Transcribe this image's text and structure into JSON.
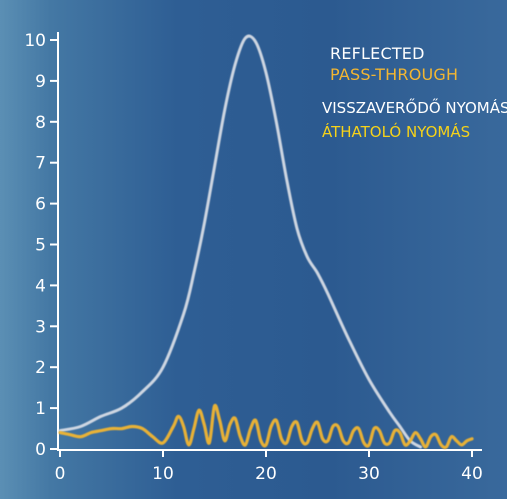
{
  "colors": {
    "background": "#2e5e94",
    "axis": "#ffffff",
    "reflected": "#d7dde6",
    "pass_through": "#f2b632",
    "legend_hu_reflected": "#ffffff",
    "legend_hu_pass": "#f5d21a"
  },
  "legend": {
    "reflected_en": "REFLECTED",
    "pass_en": "PASS-THROUGH",
    "reflected_hu": "VISSZAVERŐDŐ NYOMÁS",
    "pass_hu": "ÁTHATOLÓ NYOMÁS"
  },
  "chart_data": {
    "type": "line",
    "title": "",
    "xlabel": "",
    "ylabel": "",
    "xlim": [
      0,
      40
    ],
    "ylim": [
      0,
      10
    ],
    "x_ticks": [
      "0",
      "10",
      "20",
      "30",
      "40"
    ],
    "y_ticks": [
      "0",
      "1",
      "2",
      "3",
      "4",
      "5",
      "6",
      "7",
      "8",
      "9",
      "10"
    ],
    "grid": false,
    "legend_position": "top-right",
    "series": [
      {
        "name": "REFLECTED",
        "x": [
          0,
          2,
          4,
          6,
          8,
          10,
          12,
          13,
          14,
          15,
          16,
          17,
          18,
          19,
          20,
          21,
          22,
          23,
          24,
          25,
          26,
          28,
          30,
          32,
          33,
          34,
          35
        ],
        "y": [
          0.45,
          0.55,
          0.8,
          1.0,
          1.4,
          2.0,
          3.3,
          4.3,
          5.5,
          6.9,
          8.3,
          9.4,
          10.05,
          9.95,
          9.2,
          8.0,
          6.6,
          5.4,
          4.7,
          4.3,
          3.8,
          2.7,
          1.7,
          0.9,
          0.55,
          0.2,
          0.05
        ]
      },
      {
        "name": "PASS-THROUGH",
        "x": [
          0,
          1,
          2,
          3,
          4,
          5,
          6,
          7,
          8,
          9,
          10,
          11,
          11.5,
          12,
          12.5,
          13,
          13.5,
          14,
          14.5,
          15,
          15.5,
          16,
          16.5,
          17,
          17.5,
          18,
          18.5,
          19,
          19.5,
          20,
          20.5,
          21,
          21.5,
          22,
          22.5,
          23,
          23.5,
          24,
          24.5,
          25,
          25.5,
          26,
          26.5,
          27,
          27.5,
          28,
          28.5,
          29,
          29.5,
          30,
          30.5,
          31,
          31.5,
          32,
          32.5,
          33,
          33.5,
          34,
          34.5,
          35,
          35.5,
          36,
          36.5,
          37,
          37.5,
          38,
          38.5,
          39,
          39.5,
          40
        ],
        "y": [
          0.4,
          0.35,
          0.3,
          0.4,
          0.45,
          0.5,
          0.5,
          0.55,
          0.5,
          0.3,
          0.15,
          0.55,
          0.8,
          0.55,
          0.1,
          0.5,
          0.95,
          0.6,
          0.15,
          1.05,
          0.7,
          0.2,
          0.6,
          0.75,
          0.3,
          0.1,
          0.5,
          0.7,
          0.2,
          0.1,
          0.55,
          0.7,
          0.25,
          0.15,
          0.55,
          0.65,
          0.2,
          0.15,
          0.5,
          0.65,
          0.25,
          0.2,
          0.55,
          0.55,
          0.2,
          0.15,
          0.45,
          0.5,
          0.15,
          0.1,
          0.5,
          0.45,
          0.15,
          0.15,
          0.45,
          0.4,
          0.1,
          0.2,
          0.4,
          0.25,
          0.05,
          0.3,
          0.35,
          0.1,
          0.05,
          0.3,
          0.2,
          0.1,
          0.2,
          0.25
        ]
      }
    ]
  }
}
